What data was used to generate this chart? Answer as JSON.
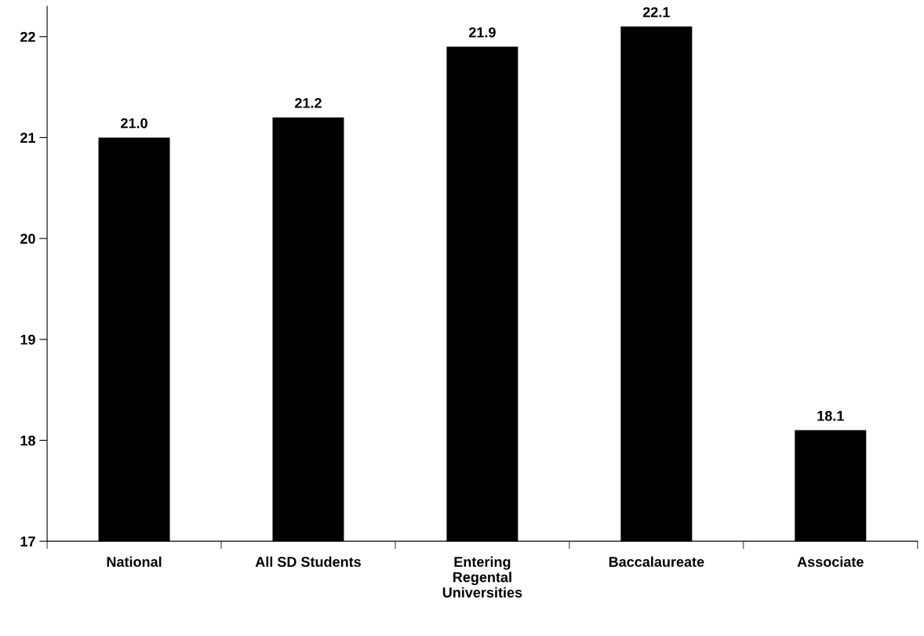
{
  "chart_data": {
    "type": "bar",
    "categories": [
      "National",
      "All SD Students",
      "Entering\nRegental\nUniversities",
      "Baccalaureate",
      "Associate"
    ],
    "values": [
      21.0,
      21.2,
      21.9,
      22.1,
      18.1
    ],
    "value_labels": [
      "21.0",
      "21.2",
      "21.9",
      "22.1",
      "18.1"
    ],
    "color": "#000000",
    "ylim": [
      17,
      22.3
    ],
    "yticks": [
      17,
      18,
      19,
      20,
      21,
      22
    ],
    "grid": false,
    "legend": false
  }
}
